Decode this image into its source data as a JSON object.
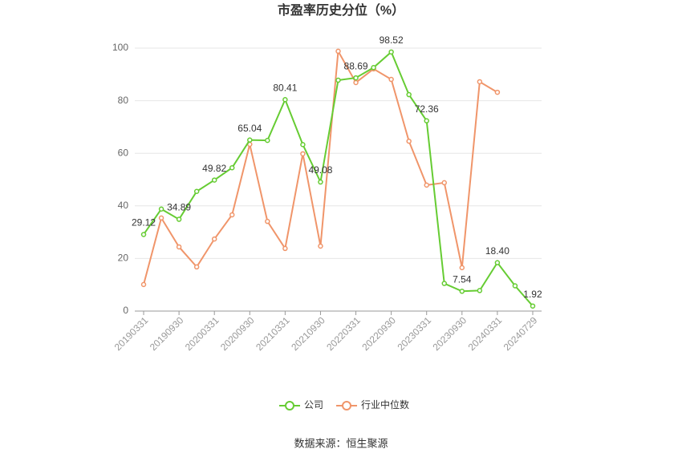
{
  "chart_data": {
    "type": "line",
    "title": "市盈率历史分位（%）",
    "source": "数据来源：恒生聚源",
    "categories": [
      "20190331",
      null,
      "20190930",
      null,
      "20200331",
      null,
      "20200930",
      null,
      "20210331",
      null,
      "20210930",
      null,
      "20220331",
      null,
      "20220930",
      null,
      "20230331",
      null,
      "20230930",
      null,
      "20240331",
      null,
      "20240729"
    ],
    "series": [
      {
        "name": "公司",
        "color": "#66cc33",
        "values": [
          29.12,
          38.8,
          34.89,
          45.5,
          49.82,
          54.5,
          65.04,
          64.9,
          80.41,
          63.3,
          49.08,
          87.8,
          88.69,
          92.6,
          98.52,
          82.3,
          72.36,
          10.5,
          7.54,
          7.8,
          18.4,
          9.6,
          1.92
        ],
        "value_labels": [
          "29.12",
          null,
          "34.89",
          null,
          "49.82",
          null,
          "65.04",
          null,
          "80.41",
          null,
          "49.08",
          null,
          "88.69",
          null,
          "98.52",
          null,
          "72.36",
          null,
          "7.54",
          null,
          "18.40",
          null,
          "1.92"
        ]
      },
      {
        "name": "行业中位数",
        "color": "#f0956a",
        "values": [
          10.1,
          35.4,
          24.4,
          16.8,
          27.4,
          36.6,
          63.4,
          34.1,
          23.8,
          59.8,
          24.7,
          98.8,
          86.9,
          92.1,
          88.1,
          64.6,
          47.9,
          48.8,
          16.5,
          87.2,
          83.2,
          null,
          null
        ]
      }
    ],
    "ylim": [
      0,
      100
    ],
    "yticks": [
      0,
      20,
      40,
      60,
      80,
      100
    ],
    "grid": true,
    "legend": "bottom"
  }
}
